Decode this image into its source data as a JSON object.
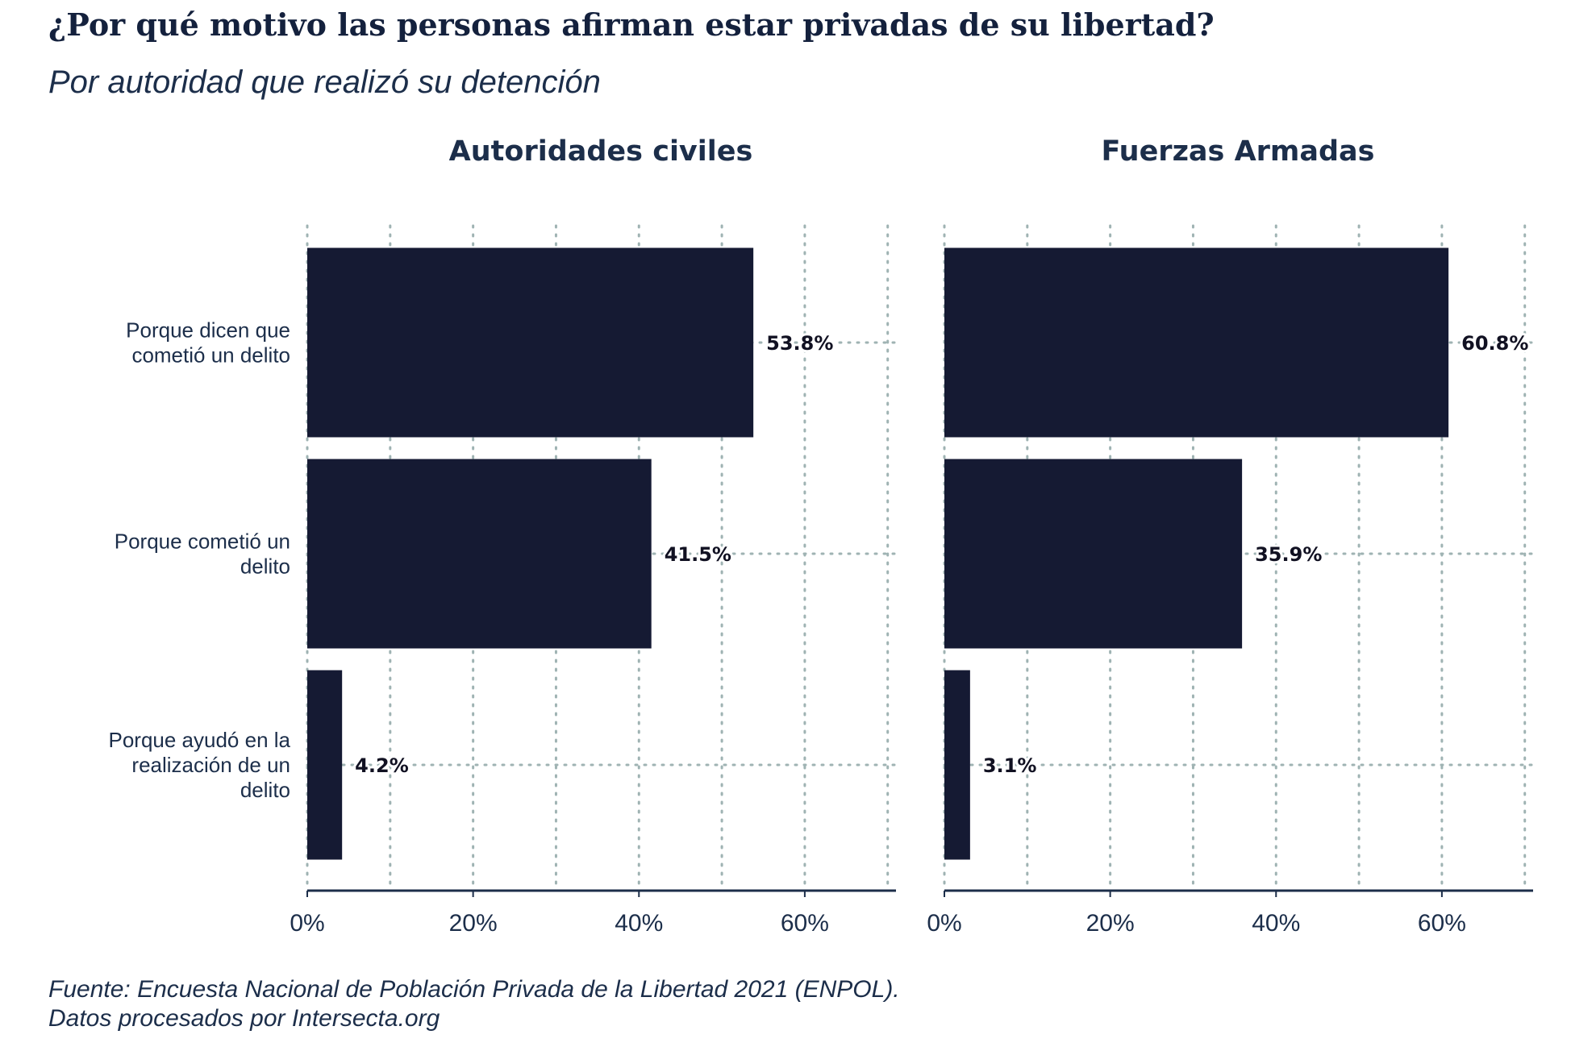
{
  "title": "¿Por qué motivo las personas afirman estar privadas de su libertad?",
  "subtitle": "Por autoridad que realizó su detención",
  "source_line1": "Fuente: Encuesta Nacional de Población Privada de la Libertad 2021 (ENPOL).",
  "source_line2": "Datos procesados por Intersecta.org",
  "colors": {
    "bar": "#151a33",
    "grid": "#9fb3b3",
    "axis": "#1c2e4a",
    "text": "#1c2e4a"
  },
  "chart_data": [
    {
      "type": "bar",
      "orientation": "horizontal",
      "panel_title": "Autoridades civiles",
      "categories": [
        [
          "Porque dicen que",
          "cometió un delito"
        ],
        [
          "Porque cometió un",
          "delito"
        ],
        [
          "Porque ayudó en la",
          "realización de un",
          "delito"
        ]
      ],
      "values": [
        53.8,
        41.5,
        4.2
      ],
      "value_labels": [
        "53.8%",
        "41.5%",
        "4.2%"
      ],
      "xlim": [
        0,
        71
      ],
      "x_ticks": [
        0,
        20,
        40,
        60
      ],
      "x_tick_labels": [
        "0%",
        "20%",
        "40%",
        "60%"
      ],
      "grid": true
    },
    {
      "type": "bar",
      "orientation": "horizontal",
      "panel_title": "Fuerzas Armadas",
      "categories": [
        [
          "Porque dicen que",
          "cometió un delito"
        ],
        [
          "Porque cometió un",
          "delito"
        ],
        [
          "Porque ayudó en la",
          "realización de un",
          "delito"
        ]
      ],
      "values": [
        60.8,
        35.9,
        3.1
      ],
      "value_labels": [
        "60.8%",
        "35.9%",
        "3.1%"
      ],
      "xlim": [
        0,
        71
      ],
      "x_ticks": [
        0,
        20,
        40,
        60
      ],
      "x_tick_labels": [
        "0%",
        "20%",
        "40%",
        "60%"
      ],
      "grid": true
    }
  ]
}
